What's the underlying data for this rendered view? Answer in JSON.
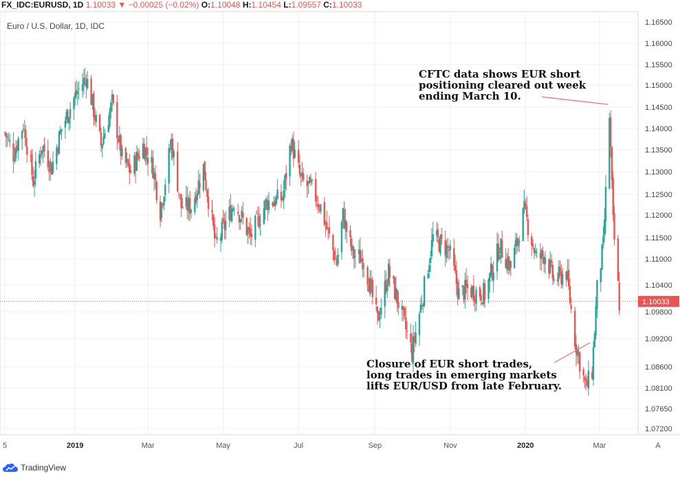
{
  "header": {
    "symbol": "FX_IDC:EURUSD, 1D",
    "last": "1.10033",
    "change": "▼ −0.00025 (−0.02%)",
    "open_label": "O:",
    "open": "1.10048",
    "high_label": "H:",
    "high": "1.10454",
    "low_label": "L:",
    "low": "1.09557",
    "close_label": "C:",
    "close": "1.10033"
  },
  "subtitle": "Euro / U.S. Dollar, 1D, IDC",
  "annotations": [
    "CFTC data shows EUR short\npositioning cleared out week\nending March 10.",
    "Closure of EUR short trades,\nlong trades in emerging markets\nlifts EUR/USD from late February."
  ],
  "branding": "TradingView",
  "autoscale_button": "A",
  "chart_data": {
    "type": "candlestick",
    "instrument": "EUR/USD",
    "y_ticks": [
      1.165,
      1.16,
      1.155,
      1.15,
      1.145,
      1.14,
      1.135,
      1.13,
      1.125,
      1.12,
      1.115,
      1.11,
      1.104,
      1.098,
      1.092,
      1.086,
      1.081,
      1.0765,
      1.072
    ],
    "y_tick_labels": [
      "1.16500",
      "1.16000",
      "1.15500",
      "1.15000",
      "1.14500",
      "1.14000",
      "1.13500",
      "1.13000",
      "1.12500",
      "1.12000",
      "1.11500",
      "1.11000",
      "1.10400",
      "1.09800",
      "1.09200",
      "1.08600",
      "1.08100",
      "1.07650",
      "1.07200"
    ],
    "x_ticks": [
      {
        "label": "5",
        "date": "2018-11-05"
      },
      {
        "label": "2019",
        "date": "2019-01-01"
      },
      {
        "label": "Mar",
        "date": "2019-03-01"
      },
      {
        "label": "May",
        "date": "2019-05-01"
      },
      {
        "label": "Jul",
        "date": "2019-07-01"
      },
      {
        "label": "Sep",
        "date": "2019-09-01"
      },
      {
        "label": "Nov",
        "date": "2019-11-01"
      },
      {
        "label": "2020",
        "date": "2020-01-01"
      },
      {
        "label": "Mar",
        "date": "2020-03-01"
      }
    ],
    "last_price": 1.10033,
    "last_price_label": "1.10033",
    "up_color": "#26a69a",
    "down_color": "#ef5350",
    "grid": true,
    "close_path": [
      [
        "2018-11-05",
        1.139
      ],
      [
        "2018-11-12",
        1.134
      ],
      [
        "2018-11-20",
        1.141
      ],
      [
        "2018-11-28",
        1.128
      ],
      [
        "2018-12-05",
        1.136
      ],
      [
        "2018-12-13",
        1.131
      ],
      [
        "2018-12-21",
        1.14
      ],
      [
        "2018-12-31",
        1.147
      ],
      [
        "2019-01-10",
        1.152
      ],
      [
        "2019-01-14",
        1.147
      ],
      [
        "2019-01-22",
        1.136
      ],
      [
        "2019-01-31",
        1.146
      ],
      [
        "2019-02-08",
        1.133
      ],
      [
        "2019-02-15",
        1.13
      ],
      [
        "2019-02-25",
        1.136
      ],
      [
        "2019-03-05",
        1.131
      ],
      [
        "2019-03-11",
        1.121
      ],
      [
        "2019-03-20",
        1.137
      ],
      [
        "2019-03-28",
        1.122
      ],
      [
        "2019-04-05",
        1.122
      ],
      [
        "2019-04-15",
        1.131
      ],
      [
        "2019-04-25",
        1.113
      ],
      [
        "2019-05-10",
        1.123
      ],
      [
        "2019-05-23",
        1.115
      ],
      [
        "2019-06-05",
        1.123
      ],
      [
        "2019-06-18",
        1.124
      ],
      [
        "2019-06-25",
        1.137
      ],
      [
        "2019-07-03",
        1.128
      ],
      [
        "2019-07-12",
        1.126
      ],
      [
        "2019-07-19",
        1.122
      ],
      [
        "2019-08-01",
        1.109
      ],
      [
        "2019-08-06",
        1.12
      ],
      [
        "2019-08-14",
        1.111
      ],
      [
        "2019-08-23",
        1.11
      ],
      [
        "2019-09-03",
        1.096
      ],
      [
        "2019-09-12",
        1.107
      ],
      [
        "2019-09-20",
        1.1
      ],
      [
        "2019-10-01",
        1.089
      ],
      [
        "2019-10-10",
        1.102
      ],
      [
        "2019-10-18",
        1.115
      ],
      [
        "2019-10-31",
        1.112
      ],
      [
        "2019-11-08",
        1.102
      ],
      [
        "2019-11-15",
        1.103
      ],
      [
        "2019-11-29",
        1.102
      ],
      [
        "2019-12-11",
        1.113
      ],
      [
        "2019-12-20",
        1.108
      ],
      [
        "2019-12-31",
        1.121
      ],
      [
        "2020-01-10",
        1.11
      ],
      [
        "2020-01-17",
        1.111
      ],
      [
        "2020-01-24",
        1.105
      ],
      [
        "2020-02-03",
        1.107
      ],
      [
        "2020-02-10",
        1.092
      ],
      [
        "2020-02-19",
        1.081
      ],
      [
        "2020-02-24",
        1.085
      ],
      [
        "2020-02-28",
        1.103
      ],
      [
        "2020-03-04",
        1.113
      ],
      [
        "2020-03-09",
        1.143
      ],
      [
        "2020-03-12",
        1.118
      ],
      [
        "2020-03-17",
        1.1
      ]
    ]
  }
}
